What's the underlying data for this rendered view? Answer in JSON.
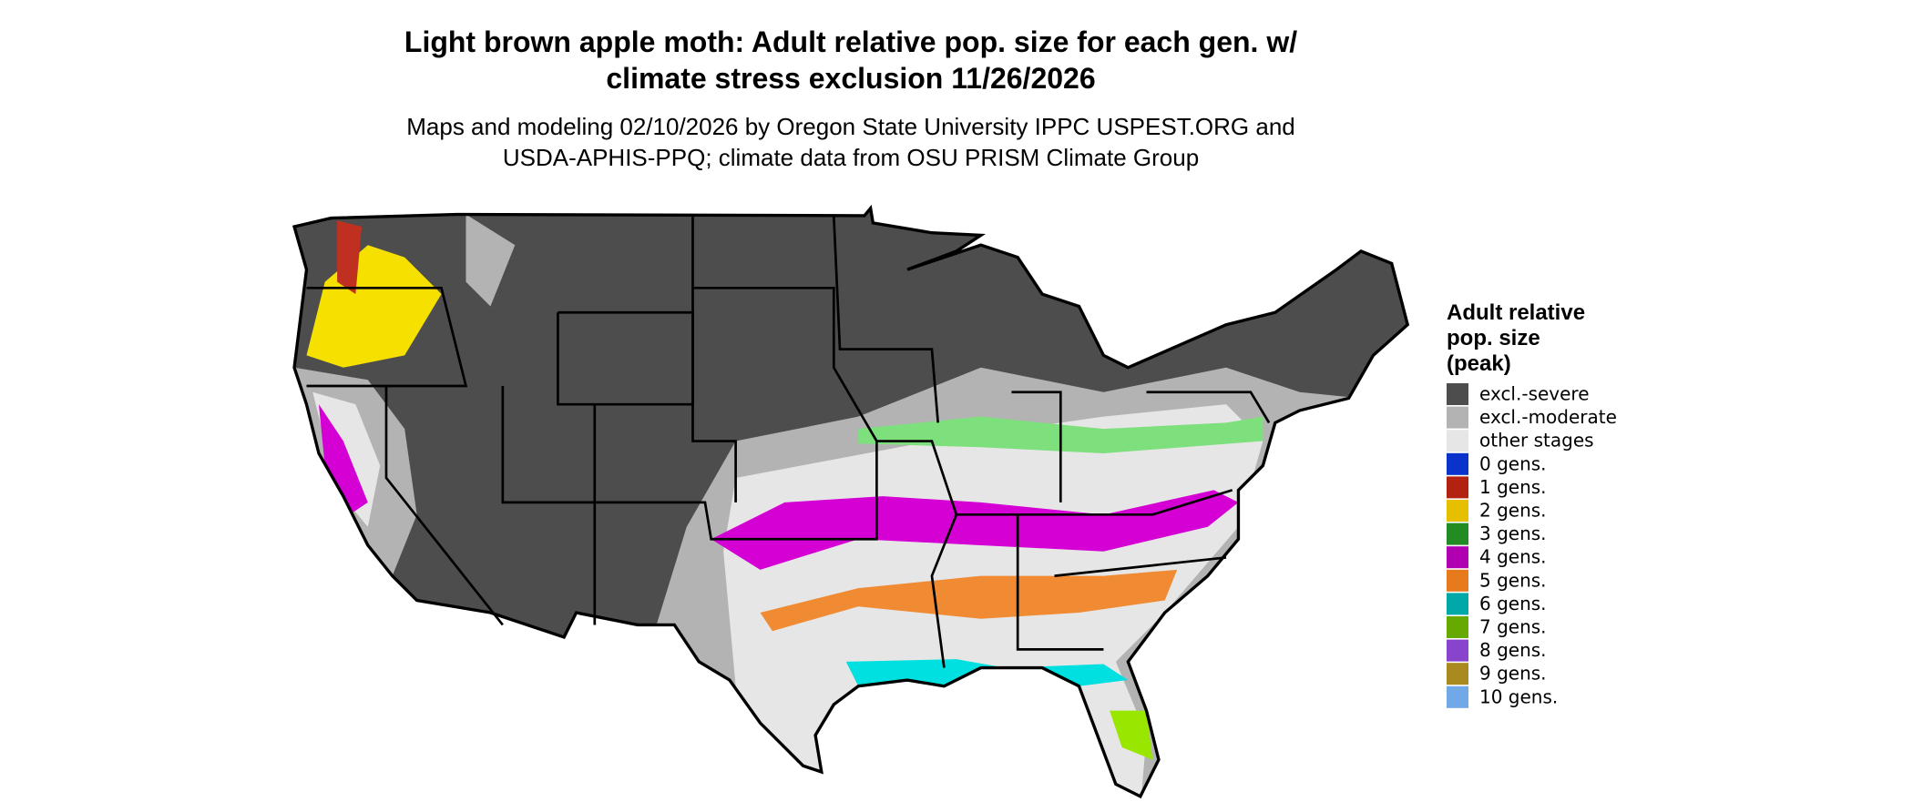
{
  "title": [
    "Light brown apple moth: Adult relative pop. size for each gen. w/",
    "climate stress exclusion 11/26/2026"
  ],
  "subtitle": [
    "Maps and modeling 02/10/2026 by Oregon State University IPPC USPEST.ORG and",
    "USDA-APHIS-PPQ; climate data from OSU PRISM Climate Group"
  ],
  "legend": {
    "title": [
      "Adult relative",
      "pop. size",
      "(peak)"
    ],
    "items": [
      {
        "label": "excl.-severe",
        "color": "#4d4d4d"
      },
      {
        "label": "excl.-moderate",
        "color": "#b3b3b3"
      },
      {
        "label": "other stages",
        "color": "#e6e6e6"
      },
      {
        "label": "0 gens.",
        "color": "#0a33cc"
      },
      {
        "label": "1 gens.",
        "color": "#b22211"
      },
      {
        "label": "2 gens.",
        "color": "#e6c000"
      },
      {
        "label": "3 gens.",
        "color": "#228b22"
      },
      {
        "label": "4 gens.",
        "color": "#b000b0"
      },
      {
        "label": "5 gens.",
        "color": "#e87a1e"
      },
      {
        "label": "6 gens.",
        "color": "#00a8a8"
      },
      {
        "label": "7 gens.",
        "color": "#66aa00"
      },
      {
        "label": "8 gens.",
        "color": "#8844cc"
      },
      {
        "label": "9 gens.",
        "color": "#a88a20"
      },
      {
        "label": "10 gens.",
        "color": "#70a8e8"
      }
    ]
  }
}
